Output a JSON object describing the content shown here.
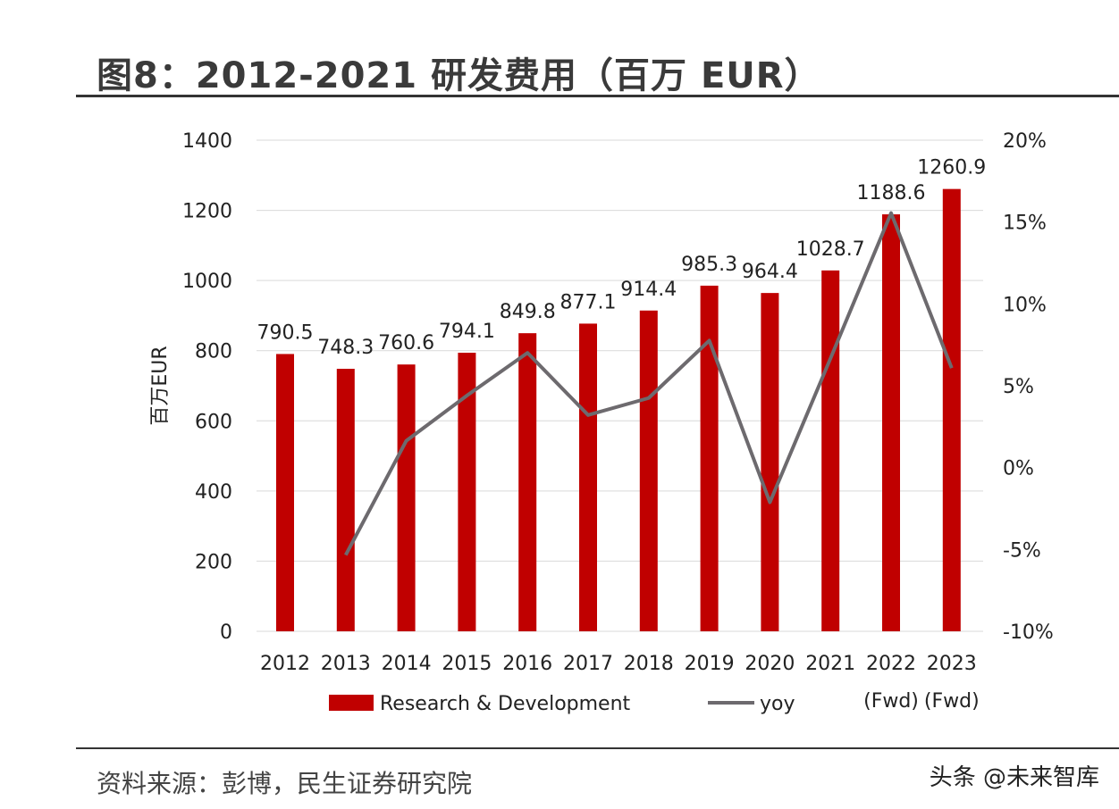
{
  "title": "图8：2012-2021 研发费用（百万 EUR）",
  "source": "资料来源：彭博，民生证券研究院",
  "watermark": "头条 @未来智库",
  "chart_data": {
    "type": "bar+line",
    "categories": [
      "2012",
      "2013",
      "2014",
      "2015",
      "2016",
      "2017",
      "2018",
      "2019",
      "2020",
      "2021",
      "2022",
      "2023"
    ],
    "category_sublabels": [
      "",
      "",
      "",
      "",
      "",
      "",
      "",
      "",
      "",
      "",
      "(Fwd)",
      "(Fwd)"
    ],
    "ylabel": "百万EUR",
    "ylim": [
      0,
      1400
    ],
    "yticks": [
      "0",
      "200",
      "400",
      "600",
      "800",
      "1000",
      "1200",
      "1400"
    ],
    "y2lim": [
      -10,
      20
    ],
    "y2ticks": [
      "-10%",
      "-5%",
      "0%",
      "5%",
      "10%",
      "15%",
      "20%"
    ],
    "grid": true,
    "legend": "bottom",
    "series": [
      {
        "name": "Research & Development",
        "type": "bar",
        "color": "#c00000",
        "values": [
          790.5,
          748.3,
          760.6,
          794.1,
          849.8,
          877.1,
          914.4,
          985.3,
          964.4,
          1028.7,
          1188.6,
          1260.9
        ],
        "labels": [
          "790.5",
          "748.3",
          "760.6",
          "794.1",
          "849.8",
          "877.1",
          "914.4",
          "985.3",
          "964.4",
          "1028.7",
          "1188.6",
          "1260.9"
        ]
      },
      {
        "name": "yoy",
        "type": "line",
        "axis": "right",
        "color": "#6d6a6e",
        "values": [
          null,
          -5.34,
          1.64,
          4.4,
          7.01,
          3.21,
          4.25,
          7.76,
          -2.12,
          6.67,
          15.55,
          6.08
        ]
      }
    ]
  }
}
